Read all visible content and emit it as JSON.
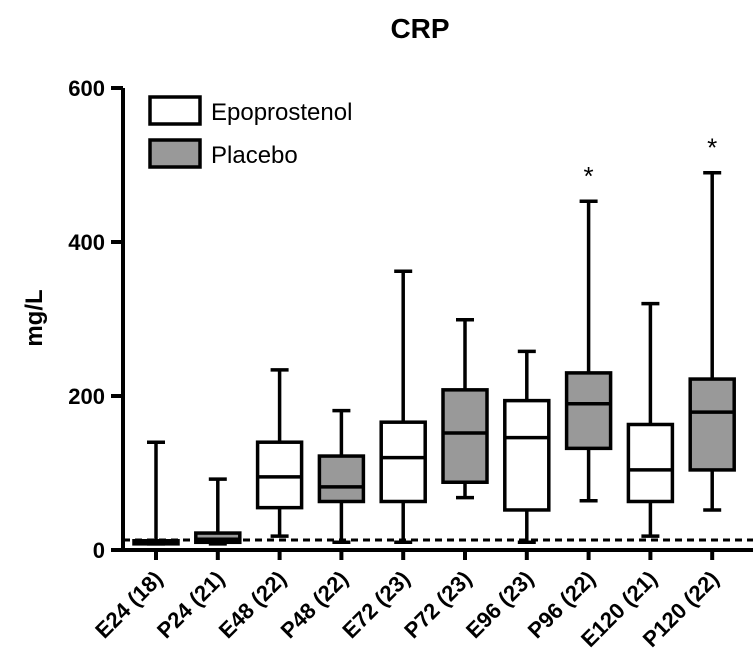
{
  "chart_data": {
    "type": "boxplot",
    "title": "CRP",
    "ylabel": "mg/L",
    "xlabel": "",
    "ylim": [
      0,
      600
    ],
    "yticks": [
      0,
      200,
      400,
      600
    ],
    "grid": false,
    "legend_position": "top-left",
    "legend": [
      {
        "name": "Epoprostenol",
        "color": "#ffffff"
      },
      {
        "name": "Placebo",
        "color": "#999999"
      }
    ],
    "reference_line": {
      "value": 13,
      "style": "dashed"
    },
    "categories": [
      "E24 (18)",
      "P24 (21)",
      "E48 (22)",
      "P48 (22)",
      "E72 (23)",
      "P72 (23)",
      "E96 (23)",
      "P96 (22)",
      "E120 (21)",
      "P120 (22)"
    ],
    "boxes": [
      {
        "label": "E24 (18)",
        "group": "Epoprostenol",
        "min": 8,
        "q1": 8,
        "median": 10,
        "q3": 12,
        "max": 140,
        "significant": false
      },
      {
        "label": "P24 (21)",
        "group": "Placebo",
        "min": 8,
        "q1": 10,
        "median": 14,
        "q3": 22,
        "max": 92,
        "significant": false
      },
      {
        "label": "E48 (22)",
        "group": "Epoprostenol",
        "min": 18,
        "q1": 55,
        "median": 95,
        "q3": 140,
        "max": 234,
        "significant": false
      },
      {
        "label": "P48 (22)",
        "group": "Placebo",
        "min": 10,
        "q1": 63,
        "median": 82,
        "q3": 122,
        "max": 181,
        "significant": false
      },
      {
        "label": "E72 (23)",
        "group": "Epoprostenol",
        "min": 10,
        "q1": 63,
        "median": 120,
        "q3": 166,
        "max": 362,
        "significant": false
      },
      {
        "label": "P72 (23)",
        "group": "Placebo",
        "min": 68,
        "q1": 88,
        "median": 152,
        "q3": 208,
        "max": 299,
        "significant": false
      },
      {
        "label": "E96 (23)",
        "group": "Epoprostenol",
        "min": 10,
        "q1": 52,
        "median": 146,
        "q3": 194,
        "max": 258,
        "significant": false
      },
      {
        "label": "P96 (22)",
        "group": "Placebo",
        "min": 64,
        "q1": 132,
        "median": 190,
        "q3": 230,
        "max": 453,
        "significant": true
      },
      {
        "label": "E120 (21)",
        "group": "Epoprostenol",
        "min": 18,
        "q1": 63,
        "median": 104,
        "q3": 163,
        "max": 320,
        "significant": false
      },
      {
        "label": "P120 (22)",
        "group": "Placebo",
        "min": 52,
        "q1": 104,
        "median": 179,
        "q3": 222,
        "max": 490,
        "significant": true
      }
    ],
    "significance_marker": "*"
  }
}
